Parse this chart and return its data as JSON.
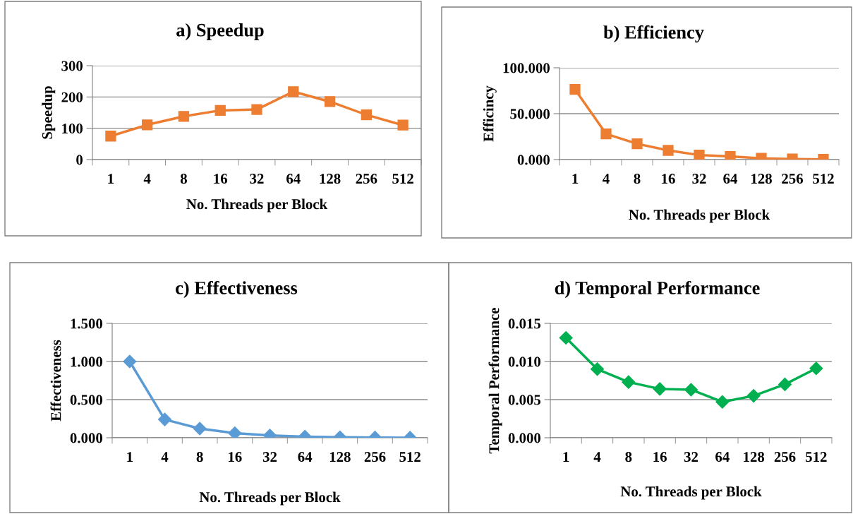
{
  "chart_data": [
    {
      "type": "line",
      "title": "a) Speedup",
      "xlabel": "No. Threads per Block",
      "ylabel": "Speedup",
      "categories": [
        "1",
        "4",
        "8",
        "16",
        "32",
        "64",
        "128",
        "256",
        "512"
      ],
      "series": [
        {
          "color": "#ed7d31",
          "values": [
            75,
            111,
            138,
            157,
            160,
            217,
            185,
            143,
            110
          ]
        }
      ],
      "ylim": [
        0,
        300
      ],
      "yticks": [
        0,
        100,
        200,
        300
      ],
      "grid": "y",
      "marker": "square",
      "line_style": "solid"
    },
    {
      "type": "line",
      "title": "b) Efficiency",
      "xlabel": "No. Threads per Block",
      "ylabel": "Efficincy",
      "categories": [
        "1",
        "4",
        "8",
        "16",
        "32",
        "64",
        "128",
        "256",
        "512"
      ],
      "series": [
        {
          "color": "#ed7d31",
          "values": [
            76.4,
            28,
            17.2,
            10,
            4.9,
            3.4,
            1.4,
            0.6,
            0.2
          ]
        }
      ],
      "ylim": [
        0,
        100
      ],
      "yticks": [
        {
          "value": 0,
          "label": "0.000"
        },
        {
          "value": 50,
          "label": "50.000"
        },
        {
          "value": 100,
          "label": "100.000"
        }
      ],
      "grid": "y",
      "marker": "square",
      "line_style": "solid"
    },
    {
      "type": "line",
      "title": "c) Effectiveness",
      "xlabel": "No. Threads per Block",
      "ylabel": "Effectiveness",
      "categories": [
        "1",
        "4",
        "8",
        "16",
        "32",
        "64",
        "128",
        "256",
        "512"
      ],
      "series": [
        {
          "color": "#5b9bd5",
          "values": [
            1.0,
            0.24,
            0.12,
            0.06,
            0.03,
            0.015,
            0.007,
            0.003,
            0.001
          ]
        }
      ],
      "ylim": [
        0,
        1.5
      ],
      "yticks": [
        {
          "value": 0,
          "label": "0.000"
        },
        {
          "value": 0.5,
          "label": "0.500"
        },
        {
          "value": 1,
          "label": "1.000"
        },
        {
          "value": 1.5,
          "label": "1.500"
        }
      ],
      "grid": "y",
      "marker": "diamond",
      "line_style": "solid"
    },
    {
      "type": "line",
      "title": "d) Temporal Performance",
      "xlabel": "No. Threads per Block",
      "ylabel": "Temporal Performance",
      "categories": [
        "1",
        "4",
        "8",
        "16",
        "32",
        "64",
        "128",
        "256",
        "512"
      ],
      "series": [
        {
          "color": "#00b050",
          "values": [
            0.0131,
            0.009,
            0.0073,
            0.0064,
            0.0063,
            0.0047,
            0.0055,
            0.007,
            0.0091
          ]
        }
      ],
      "ylim": [
        0,
        0.015
      ],
      "yticks": [
        {
          "value": 0,
          "label": "0.000"
        },
        {
          "value": 0.005,
          "label": "0.005"
        },
        {
          "value": 0.01,
          "label": "0.010"
        },
        {
          "value": 0.015,
          "label": "0.015"
        }
      ],
      "grid": "y",
      "marker": "diamond",
      "line_style": "solid"
    }
  ]
}
